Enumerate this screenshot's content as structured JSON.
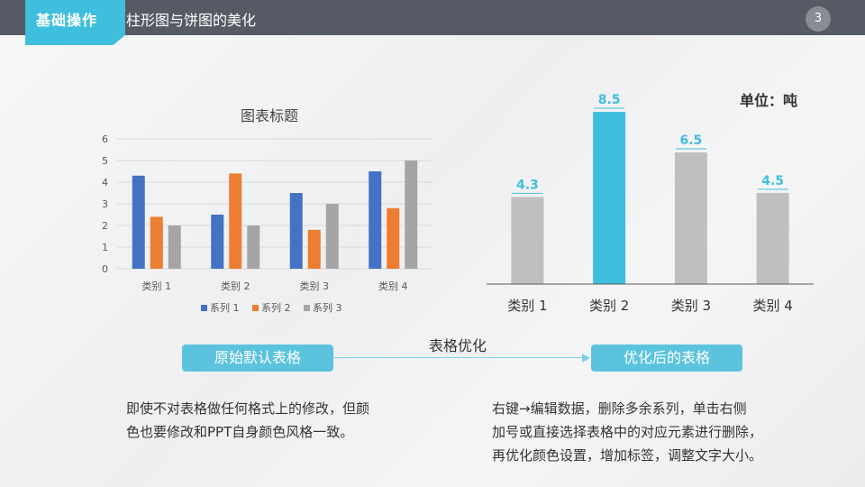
{
  "header": {
    "tag": "基础操作",
    "title": "柱形图与饼图的美化",
    "page_number": "3"
  },
  "colors": {
    "header_bg": "#565a64",
    "accent": "#3fbfdd",
    "series1": "#4472c4",
    "series2": "#ed7d31",
    "series3": "#a5a5a5",
    "gray_bar": "#bfbfbf",
    "highlight_bar": "#3fbfdd"
  },
  "chart_data": [
    {
      "type": "bar",
      "title": "图表标题",
      "categories": [
        "类别 1",
        "类别 2",
        "类别 3",
        "类别 4"
      ],
      "series": [
        {
          "name": "系列 1",
          "values": [
            4.3,
            2.5,
            3.5,
            4.5
          ]
        },
        {
          "name": "系列 2",
          "values": [
            2.4,
            4.4,
            1.8,
            2.8
          ]
        },
        {
          "name": "系列 3",
          "values": [
            2,
            2,
            3,
            5
          ]
        }
      ],
      "ylim": [
        0,
        6
      ],
      "yticks": [
        "0",
        "1",
        "2",
        "3",
        "4",
        "5",
        "6"
      ],
      "grid": true,
      "legend": "bottom"
    },
    {
      "type": "bar",
      "categories": [
        "类别 1",
        "类别 2",
        "类别 3",
        "类别 4"
      ],
      "values": [
        4.3,
        8.5,
        6.5,
        4.5
      ],
      "data_labels": [
        "4.3",
        "8.5",
        "6.5",
        "4.5"
      ],
      "highlight_index": 1,
      "unit_label": "单位：吨",
      "grid": false
    }
  ],
  "flow": {
    "left_label": "原始默认表格",
    "arrow_label": "表格优化",
    "right_label": "优化后的表格"
  },
  "descriptions": {
    "left": [
      "即使不对表格做任何格式上的修改，但颜",
      "色也要修改和PPT自身颜色风格一致。"
    ],
    "right": [
      "右键→编辑数据，删除多余系列，单击右侧",
      "加号或直接选择表格中的对应元素进行删除，",
      "再优化颜色设置，增加标签，调整文字大小。"
    ]
  }
}
